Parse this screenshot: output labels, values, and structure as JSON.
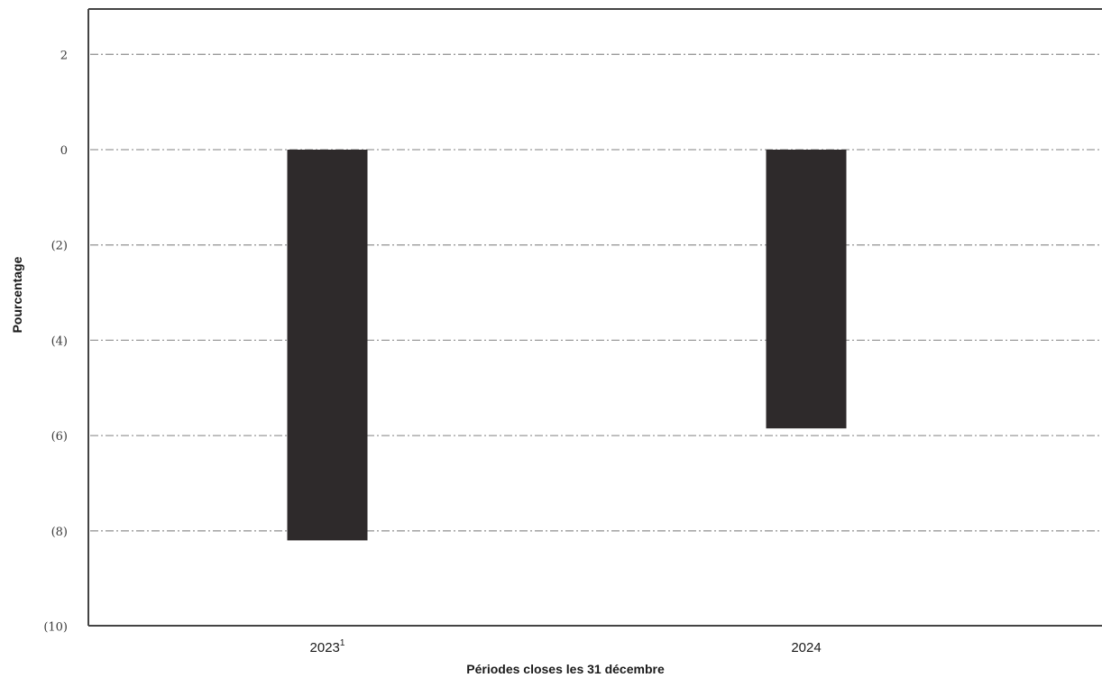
{
  "chart_data": {
    "type": "bar",
    "categories": [
      "2023",
      "2024"
    ],
    "category_labels": [
      {
        "text": "2023",
        "superscript": "1"
      },
      {
        "text": "2024",
        "superscript": ""
      }
    ],
    "values": [
      -8.2,
      -5.85
    ],
    "bar_color": "#2e2a2b",
    "title": "",
    "xlabel": "Périodes closes les 31 décembre",
    "ylabel": "Pourcentage",
    "ylim": [
      -10,
      3
    ],
    "yticks": [
      2,
      0,
      -2,
      -4,
      -6,
      -8,
      -10
    ],
    "ytick_labels": [
      "2",
      "0",
      "(2)",
      "(4)",
      "(6)",
      "(8)",
      "(10)"
    ],
    "grid": true,
    "grid_style": "dash-dot",
    "grid_color": "#9a9a9a",
    "legend": "none"
  }
}
